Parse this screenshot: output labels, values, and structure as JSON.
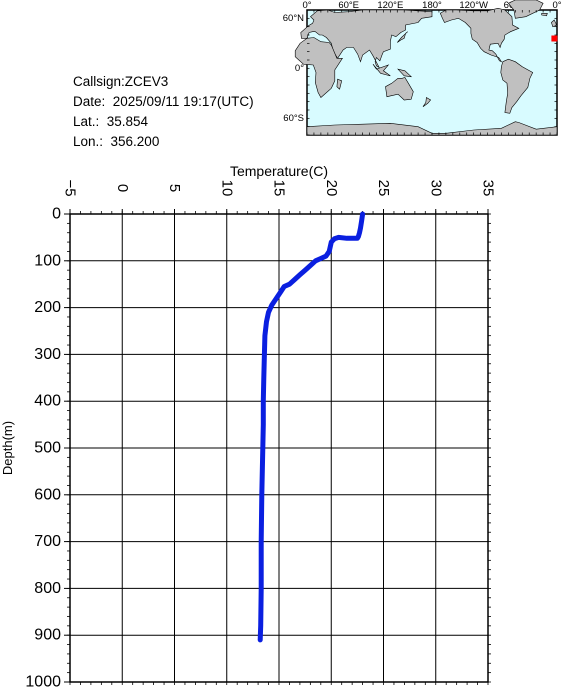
{
  "info": {
    "callsign": "Callsign:ZCEV3",
    "date": "Date:  2025/09/11 19:17(UTC)",
    "lat": "Lat.:  35.854",
    "lon": "Lon.:  356.200"
  },
  "map": {
    "lon_labels": [
      "0°",
      "60°E",
      "120°E",
      "180°",
      "120°W",
      "60°W",
      "0°"
    ],
    "lat_labels": [
      "60°N",
      "0°",
      "60°S"
    ],
    "ocean_color": "#d8fbff",
    "land_color": "#c0c0c0",
    "marker_color": "#ff0000",
    "marker_lon": 356.2,
    "marker_lat": 35.854
  },
  "chart_data": {
    "type": "line",
    "xlabel": "Temperature(C)",
    "ylabel": "Depth(m)",
    "xlim": [
      -5,
      35
    ],
    "ylim": [
      0,
      1000
    ],
    "y_inverted": true,
    "x_ticks": [
      -5,
      0,
      5,
      10,
      15,
      20,
      25,
      30,
      35
    ],
    "y_ticks": [
      0,
      100,
      200,
      300,
      400,
      500,
      600,
      700,
      800,
      900,
      1000
    ],
    "grid": true,
    "line_color": "#0a1fe0",
    "series": [
      {
        "x": [
          23.0,
          22.9,
          22.8,
          22.7,
          22.6,
          22.5,
          21.5,
          20.7,
          20.3,
          20.0,
          19.8,
          19.5,
          19.0,
          18.5,
          18.0,
          17.5,
          17.0,
          16.5,
          16.0,
          15.5,
          15.2,
          14.9,
          14.6,
          14.3,
          14.0,
          13.8,
          13.65,
          13.6,
          13.55,
          13.5,
          13.5,
          13.45,
          13.4,
          13.35,
          13.3,
          13.3,
          13.25,
          13.2
        ],
        "y": [
          0,
          15,
          30,
          40,
          48,
          52,
          52,
          50,
          53,
          60,
          80,
          90,
          95,
          100,
          110,
          120,
          130,
          140,
          150,
          155,
          165,
          175,
          185,
          195,
          210,
          230,
          260,
          300,
          350,
          400,
          450,
          500,
          550,
          600,
          700,
          800,
          880,
          910
        ]
      }
    ]
  }
}
